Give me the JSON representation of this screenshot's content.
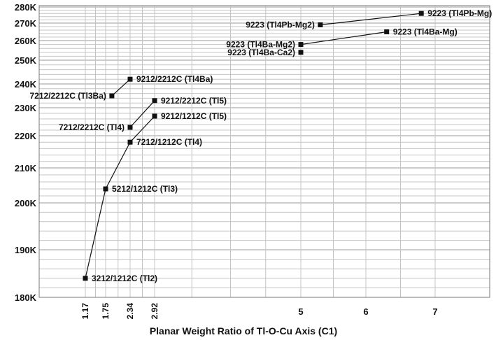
{
  "chart_data": {
    "type": "line",
    "xlabel": "Planar Weight Ratio of Tl-O-Cu Axis (C1)",
    "ylabel": "",
    "ylim": [
      180,
      280
    ],
    "y_ticks": [
      {
        "value": 180,
        "label": "180K"
      },
      {
        "value": 190,
        "label": "190K"
      },
      {
        "value": 200,
        "label": "200K"
      },
      {
        "value": 210,
        "label": "210K"
      },
      {
        "value": 220,
        "label": "220K"
      },
      {
        "value": 230,
        "label": "230K"
      },
      {
        "value": 240,
        "label": "240K"
      },
      {
        "value": 250,
        "label": "250K"
      },
      {
        "value": 260,
        "label": "260K"
      },
      {
        "value": 270,
        "label": "270K"
      },
      {
        "value": 280,
        "label": "280K"
      }
    ],
    "x_ticks": [
      {
        "value": 1.17,
        "label": "1.17",
        "rotated": true
      },
      {
        "value": 1.75,
        "label": "1.75",
        "rotated": true
      },
      {
        "value": 2.34,
        "label": "2.34",
        "rotated": true
      },
      {
        "value": 2.92,
        "label": "2.92",
        "rotated": true
      },
      {
        "value": 5,
        "label": "5",
        "rotated": false
      },
      {
        "value": 6,
        "label": "6",
        "rotated": false
      },
      {
        "value": 7,
        "label": "7",
        "rotated": false
      }
    ],
    "grid": true,
    "series": [
      {
        "points": [
          {
            "x": 1.17,
            "y": 184,
            "label": "3212/1212C (Tl2)",
            "label_pos": "right"
          },
          {
            "x": 1.75,
            "y": 204,
            "label": "5212/1212C (Tl3)",
            "label_pos": "right"
          },
          {
            "x": 2.34,
            "y": 218,
            "label": "7212/1212C (Tl4)",
            "label_pos": "right"
          },
          {
            "x": 2.92,
            "y": 227,
            "label": "9212/1212C (Tl5)",
            "label_pos": "right"
          }
        ]
      },
      {
        "points": [
          {
            "x": 2.34,
            "y": 223,
            "label": "7212/2212C (Tl4)",
            "label_pos": "left"
          },
          {
            "x": 2.92,
            "y": 233,
            "label": "9212/2212C (Tl5)",
            "label_pos": "right"
          }
        ]
      },
      {
        "points": [
          {
            "x": 1.9,
            "y": 235,
            "label": "7212/2212C (Tl3Ba)",
            "label_pos": "left"
          },
          {
            "x": 2.34,
            "y": 242,
            "label": "9212/2212C (Tl4Ba)",
            "label_pos": "right"
          }
        ]
      },
      {
        "points": [
          {
            "x": 5,
            "y": 258,
            "label": "9223 (Tl4Ba-Mg2)",
            "label_pos": "left"
          },
          {
            "x": 6.3,
            "y": 265,
            "label": "9223 (Tl4Ba-Mg)",
            "label_pos": "right"
          }
        ]
      },
      {
        "points": [
          {
            "x": 5.3,
            "y": 269,
            "label": "9223 (Tl4Pb-Mg2)",
            "label_pos": "left"
          },
          {
            "x": 6.8,
            "y": 276,
            "label": "9223 (Tl4Pb-Mg)",
            "label_pos": "right"
          }
        ]
      },
      {
        "points": [
          {
            "x": 5,
            "y": 254,
            "label": "9223 (Tl4Ba-Ca2)",
            "label_pos": "left"
          }
        ]
      }
    ]
  }
}
